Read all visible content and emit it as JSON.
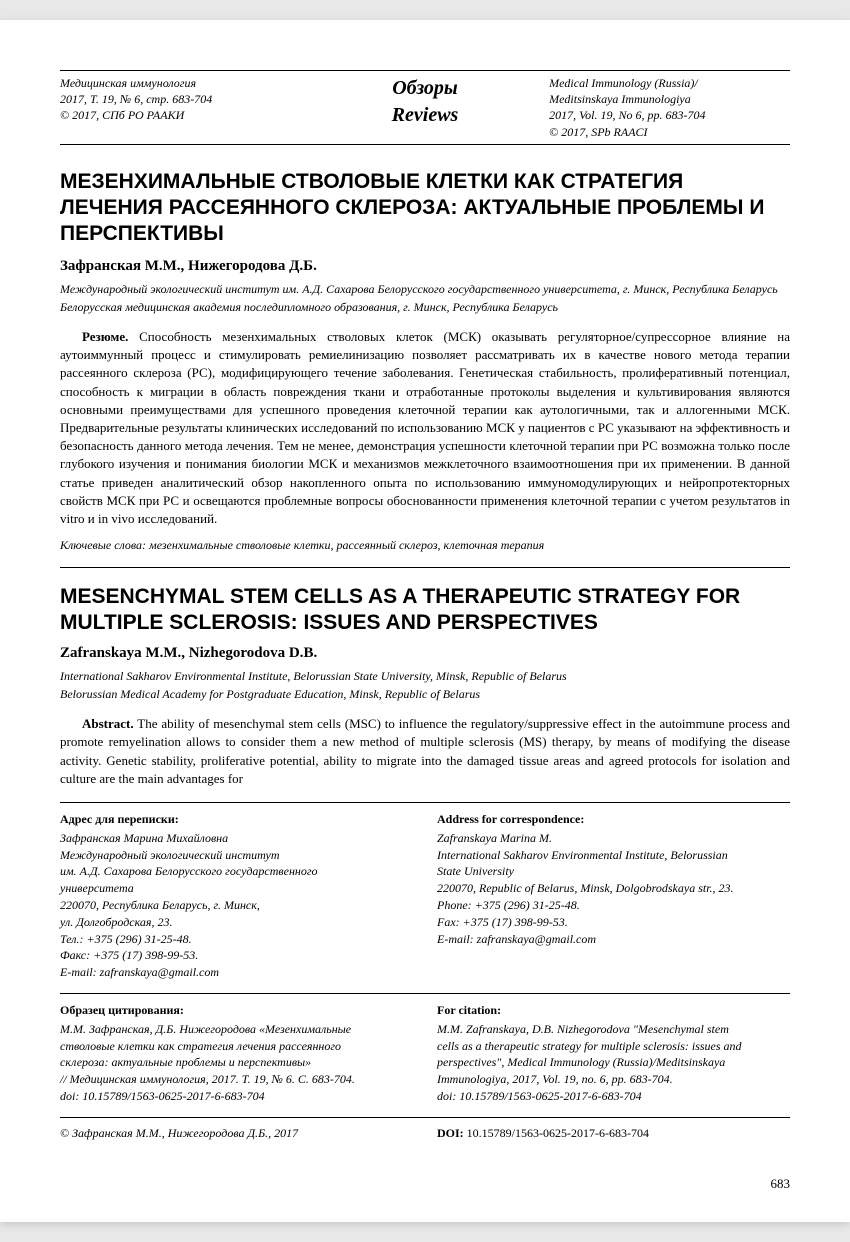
{
  "header": {
    "left": {
      "l1": "Медицинская иммунология",
      "l2": "2017, Т. 19, № 6, стр. 683-704",
      "l3": "© 2017, СПб РО РААКИ"
    },
    "center": {
      "l1": "Обзоры",
      "l2": "Reviews"
    },
    "right": {
      "l1": "Medical Immunology (Russia)/",
      "l2": "Meditsinskaya Immunologiya",
      "l3": "2017, Vol. 19, No 6, pp. 683-704",
      "l4": "© 2017, SPb RAACI"
    }
  },
  "ru": {
    "title": "МЕЗЕНХИМАЛЬНЫЕ СТВОЛОВЫЕ КЛЕТКИ КАК СТРАТЕГИЯ ЛЕЧЕНИЯ РАССЕЯННОГО СКЛЕРОЗА: АКТУАЛЬНЫЕ ПРОБЛЕМЫ И ПЕРСПЕКТИВЫ",
    "authors": "Зафранская М.М., Нижегородова Д.Б.",
    "aff1": "Международный экологический институт им. А.Д. Сахарова Белорусского государственного университета, г. Минск, Республика Беларусь",
    "aff2": "Белорусская медицинская академия последипломного образования, г. Минск, Республика Беларусь",
    "abstract_label": "Резюме.",
    "abstract": " Способность мезенхимальных стволовых клеток (МСК) оказывать регуляторное/супрессорное влияние на аутоиммунный процесс и стимулировать ремиелинизацию позволяет рассматривать их в качестве нового метода терапии рассеянного склероза (РС), модифицирующего течение заболевания. Генетическая стабильность, пролиферативный потенциал, способность к миграции в область повреждения ткани и отработанные протоколы выделения и культивирования являются основными преимуществами для успешного проведения клеточной терапии как аутологичными, так и аллогенными МСК. Предварительные результаты клинических исследований по использованию МСК у пациентов с РС указывают на эффективность и безопасность данного метода лечения. Тем не менее, демонстрация успешности клеточной терапии при РС возможна только после глубокого изучения и понимания биологии МСК и механизмов межклеточного взаимоотношения при их применении. В данной статье приведен аналитический обзор накопленного опыта по использованию иммуномодулирующих и нейропротекторных свойств МСК при РС и освещаются проблемные вопросы обоснованности применения клеточной терапии с учетом результатов in vitro и in vivo исследований.",
    "keywords": "Ключевые слова: мезенхимальные стволовые клетки, рассеянный склероз, клеточная терапия"
  },
  "en": {
    "title": "MESENCHYMAL STEM CELLS AS A THERAPEUTIC STRATEGY FOR MULTIPLE SCLEROSIS: ISSUES AND PERSPECTIVES",
    "authors": "Zafranskaya M.M., Nizhegorodova D.B.",
    "aff1": "International Sakharov Environmental Institute, Belorussian State University, Minsk, Republic of Belarus",
    "aff2": "Belorussian Medical Academy for Postgraduate Education, Minsk, Republic of Belarus",
    "abstract_label": "Abstract.",
    "abstract": " The ability of mesenchymal stem cells (MSC) to influence the regulatory/suppressive effect in the autoimmune process and promote remyelination allows to consider them a new method of multiple sclerosis (MS) therapy, by means of modifying the disease activity. Genetic stability, proliferative potential, ability to migrate into the damaged tissue areas and agreed protocols for isolation and culture are the main advantages for"
  },
  "corr": {
    "ru": {
      "heading": "Адрес для переписки:",
      "lines": "Зафранская Марина Михайловна\nМеждународный экологический институт\nим. А.Д. Сахарова Белорусского государственного\nуниверситета\n220070, Республика Беларусь, г. Минск,\nул. Долгобродская, 23.\nТел.: +375 (296) 31-25-48.\nФакс: +375 (17) 398-99-53.\nE-mail: zafranskaya@gmail.com"
    },
    "en": {
      "heading": "Address for correspondence:",
      "lines": "Zafranskaya Marina M.\nInternational Sakharov Environmental Institute, Belorussian\nState University\n220070, Republic of Belarus, Minsk, Dolgobrodskaya str., 23.\nPhone: +375 (296) 31-25-48.\nFax: +375 (17) 398-99-53.\nE-mail: zafranskaya@gmail.com"
    }
  },
  "cite": {
    "ru": {
      "heading": "Образец цитирования:",
      "lines": "М.М. Зафранская, Д.Б. Нижегородова «Мезенхимальные\nстволовые клетки как стратегия лечения рассеянного\nсклероза: актуальные проблемы и перспективы»\n// Медицинская иммунология, 2017. Т. 19, № 6. С. 683-704.\ndoi: 10.15789/1563-0625-2017-6-683-704"
    },
    "en": {
      "heading": "For citation:",
      "lines": "M.M. Zafranskaya, D.B. Nizhegorodova \"Mesenchymal stem\ncells as a therapeutic strategy for multiple sclerosis: issues and\nperspectives\", Medical Immunology (Russia)/Meditsinskaya\nImmunologiya, 2017, Vol. 19, no. 6, pp. 683-704.\ndoi: 10.15789/1563-0625-2017-6-683-704"
    }
  },
  "footer": {
    "left": "© Зафранская М.М., Нижегородова Д.Б., 2017",
    "right_label": "DOI:",
    "right_value": " 10.15789/1563-0625-2017-6-683-704"
  },
  "page_number": "683"
}
